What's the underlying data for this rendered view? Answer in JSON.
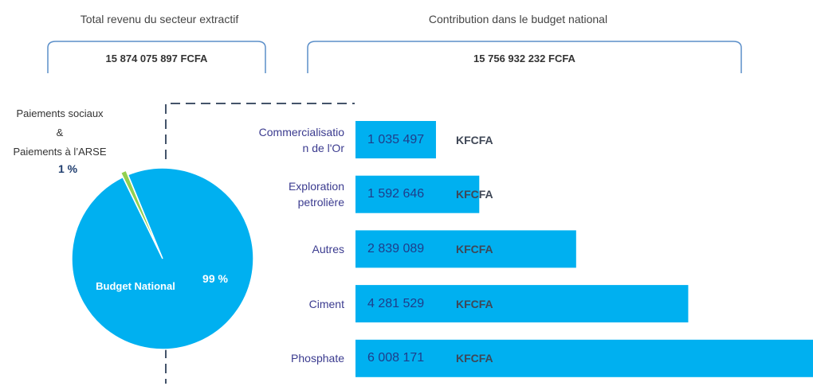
{
  "header": {
    "left_title": "Total revenu du secteur extractif",
    "left_value": "15 874 075 897 FCFA",
    "right_title": "Contribution dans le budget national",
    "right_value": "15 756 932 232 FCFA"
  },
  "chart_data": [
    {
      "type": "pie",
      "categories": [
        "Paiements sociaux\n&\nPaiements à l’ARSE",
        "Budget National"
      ],
      "values": [
        1,
        99
      ],
      "value_labels": [
        "1 %",
        "99 %"
      ],
      "colors": [
        "#92d050",
        "#00b0f0"
      ]
    },
    {
      "type": "bar",
      "orientation": "horizontal",
      "categories": [
        "Commercialisation de l'Or",
        "Exploration petrolière",
        "Autres",
        "Ciment",
        "Phosphate"
      ],
      "values": [
        1035497,
        1592646,
        2839089,
        4281529,
        6008171
      ],
      "value_labels": [
        "1 035 497",
        "1 592 646",
        "2 839 089",
        "4 281 529",
        "6 008 171"
      ],
      "unit": "KFCFA",
      "color": "#00b0f0",
      "xlim": [
        0,
        5887000
      ]
    }
  ]
}
